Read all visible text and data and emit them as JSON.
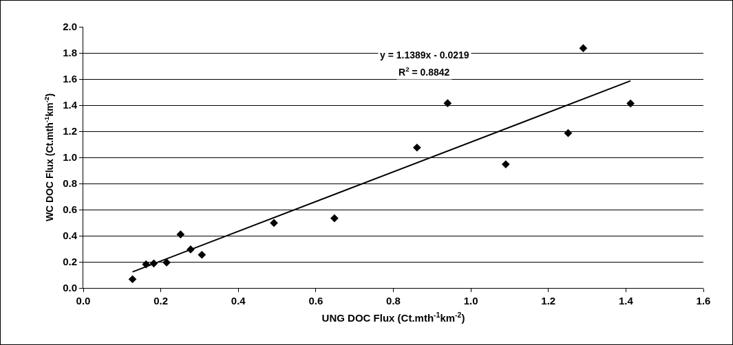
{
  "chart_data": {
    "type": "scatter",
    "xlabel": "UNG DOC Flux (Ct.mth$^{-1}$km$^{-2}$)",
    "ylabel": "WC DOC Flux (Ct.mth$^{-1}$km$^{-2}$)",
    "annotations": [
      "y = 1.1389x - 0.0219",
      "R$^{2}$ = 0.8842"
    ],
    "series": [
      {
        "color": "#000000",
        "marker": "diamond",
        "x": [
          0.127,
          0.162,
          0.182,
          0.215,
          0.251,
          0.277,
          0.306,
          0.492,
          0.648,
          0.861,
          0.94,
          1.09,
          1.251,
          1.29,
          1.412
        ],
        "values": [
          0.067,
          0.181,
          0.188,
          0.195,
          0.41,
          0.295,
          0.254,
          0.498,
          0.534,
          1.075,
          1.415,
          0.947,
          1.186,
          1.836,
          1.413
        ]
      },
      {
        "type": "line",
        "color": "#000000",
        "line_style": "solid",
        "x": [
          0.127,
          1.412
        ],
        "values": [
          0.123,
          1.586
        ]
      }
    ],
    "xlim": [
      0,
      1.6
    ],
    "xticks": [
      {
        "value": 0,
        "label": "0.0"
      },
      0.2,
      0.4,
      0.6,
      0.8,
      {
        "value": 1,
        "label": "1.0"
      },
      1.2,
      1.4,
      1.6
    ],
    "ylim": [
      0,
      2
    ],
    "yticks": [
      {
        "value": 0,
        "label": "0.0"
      },
      0.2,
      0.4,
      0.6,
      0.8,
      {
        "value": 1,
        "label": "1.0"
      },
      1.2,
      1.4,
      1.6,
      1.8,
      {
        "value": 2,
        "label": "2.0"
      }
    ],
    "grid": "y"
  }
}
